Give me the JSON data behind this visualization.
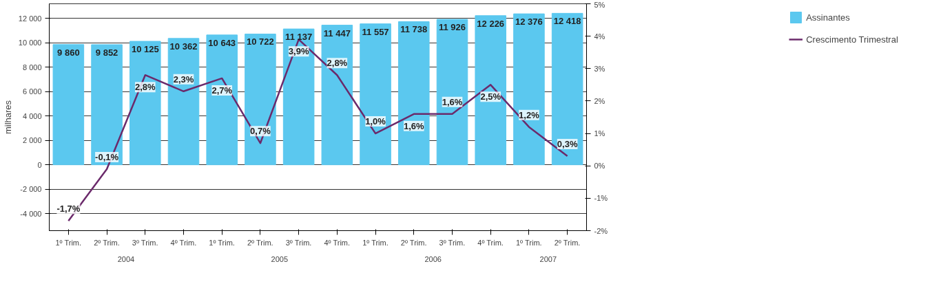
{
  "chart_data": {
    "type": "bar",
    "ylabel": "milhares",
    "categories": [
      "1º Trim.",
      "2º Trim.",
      "3º Trim.",
      "4º Trim.",
      "1º Trim.",
      "2º Trim.",
      "3º Trim.",
      "4º Trim.",
      "1º Trim.",
      "2º Trim.",
      "3º Trim.",
      "4º Trim.",
      "1º Trim.",
      "2º Trim."
    ],
    "annotations": [
      "2004",
      "2005",
      "2006",
      "2007"
    ],
    "series": [
      {
        "name": "Assinantes",
        "color": "#5bc8ef",
        "values": [
          9860,
          9852,
          10125,
          10362,
          10643,
          10722,
          11137,
          11447,
          11557,
          11738,
          11926,
          12226,
          12376,
          12418
        ],
        "value_labels": [
          "9 860",
          "9 852",
          "10 125",
          "10 362",
          "10 643",
          "10 722",
          "11 137",
          "11 447",
          "11 557",
          "11 738",
          "11 926",
          "12 226",
          "12 376",
          "12 418"
        ]
      },
      {
        "name": "Crescimento Trimestral",
        "type": "line",
        "axis": "y2",
        "color": "#6b2a6b",
        "values": [
          -1.7,
          -0.1,
          2.8,
          2.3,
          2.7,
          0.7,
          3.9,
          2.8,
          1.0,
          1.6,
          1.6,
          2.5,
          1.2,
          0.3
        ],
        "value_labels": [
          "-1,7%",
          "-0,1%",
          "2,8%",
          "2,3%",
          "2,7%",
          "0,7%",
          "3,9%",
          "2,8%",
          "1,0%",
          "1,6%",
          "1,6%",
          "2,5%",
          "1,2%",
          "0,3%"
        ]
      }
    ],
    "ylim": [
      -5400,
      13200
    ],
    "yticks": [
      {
        "value": -4000,
        "label": "-4 000"
      },
      {
        "value": -2000,
        "label": "-2 000"
      },
      0,
      {
        "value": 2000,
        "label": "2 000"
      },
      {
        "value": 4000,
        "label": "4 000"
      },
      {
        "value": 6000,
        "label": "6 000"
      },
      {
        "value": 8000,
        "label": "8 000"
      },
      {
        "value": 10000,
        "label": "10 000"
      },
      {
        "value": 12000,
        "label": "12 000"
      }
    ],
    "y2lim": [
      -2,
      5
    ],
    "y2ticks": [
      {
        "value": -2,
        "label": "-2%"
      },
      {
        "value": -1,
        "label": "-1%"
      },
      {
        "value": 0,
        "label": "0%"
      },
      {
        "value": 1,
        "label": "1%"
      },
      {
        "value": 2,
        "label": "2%"
      },
      {
        "value": 3,
        "label": "3%"
      },
      {
        "value": 4,
        "label": "4%"
      },
      {
        "value": 5,
        "label": "5%"
      }
    ],
    "grid": "y",
    "legend": "right",
    "line_style": "solid",
    "marker": "none"
  }
}
